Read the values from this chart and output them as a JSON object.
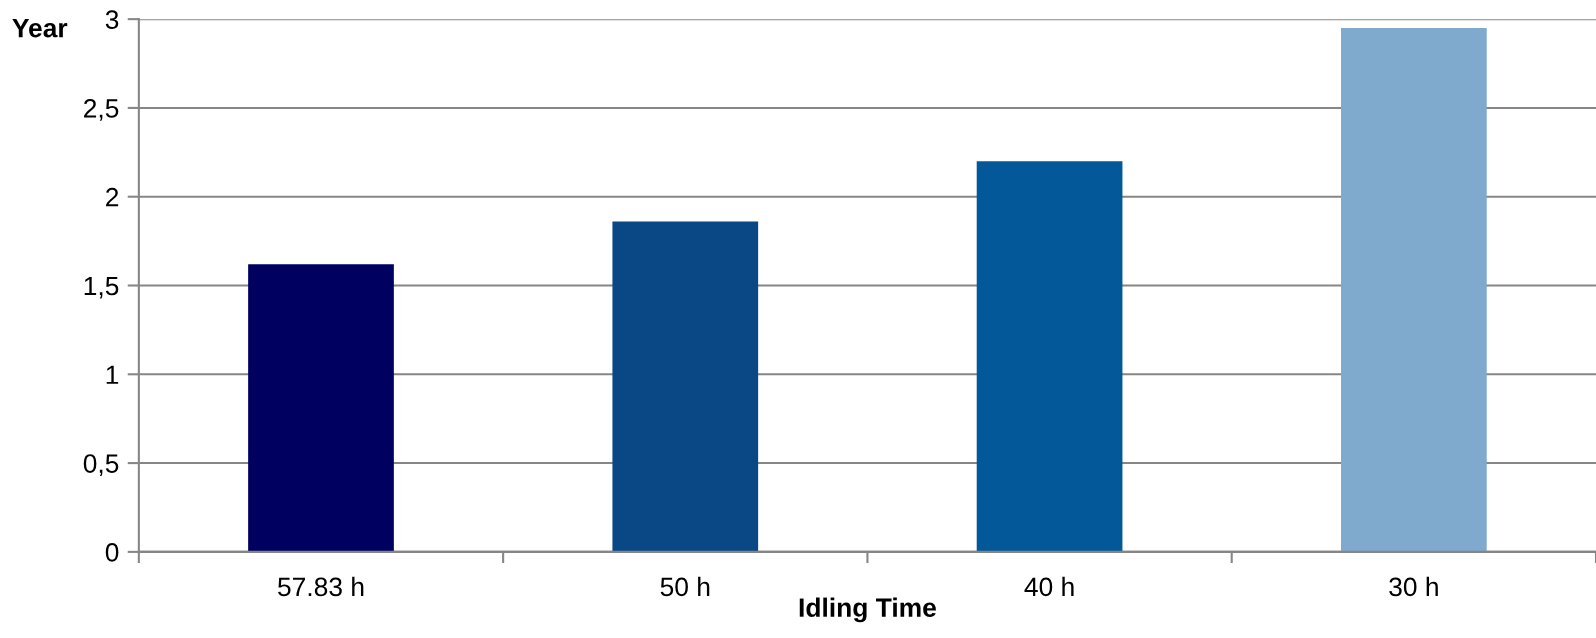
{
  "chart_data": {
    "type": "bar",
    "xlabel": "Idling Time",
    "ylabel": "Year",
    "categories": [
      "57.83 h",
      "50 h",
      "40 h",
      "30 h"
    ],
    "values": [
      1.62,
      1.86,
      2.2,
      2.95
    ],
    "colors": [
      "#000060",
      "#0a4785",
      "#025898",
      "#7faacd"
    ],
    "ylim": [
      0,
      3
    ],
    "yticks": [
      0,
      {
        "value": 0.5,
        "label": "0,5"
      },
      1,
      {
        "value": 1.5,
        "label": "1,5"
      },
      2,
      {
        "value": 2.5,
        "label": "2,5"
      },
      3
    ],
    "grid": "y"
  }
}
